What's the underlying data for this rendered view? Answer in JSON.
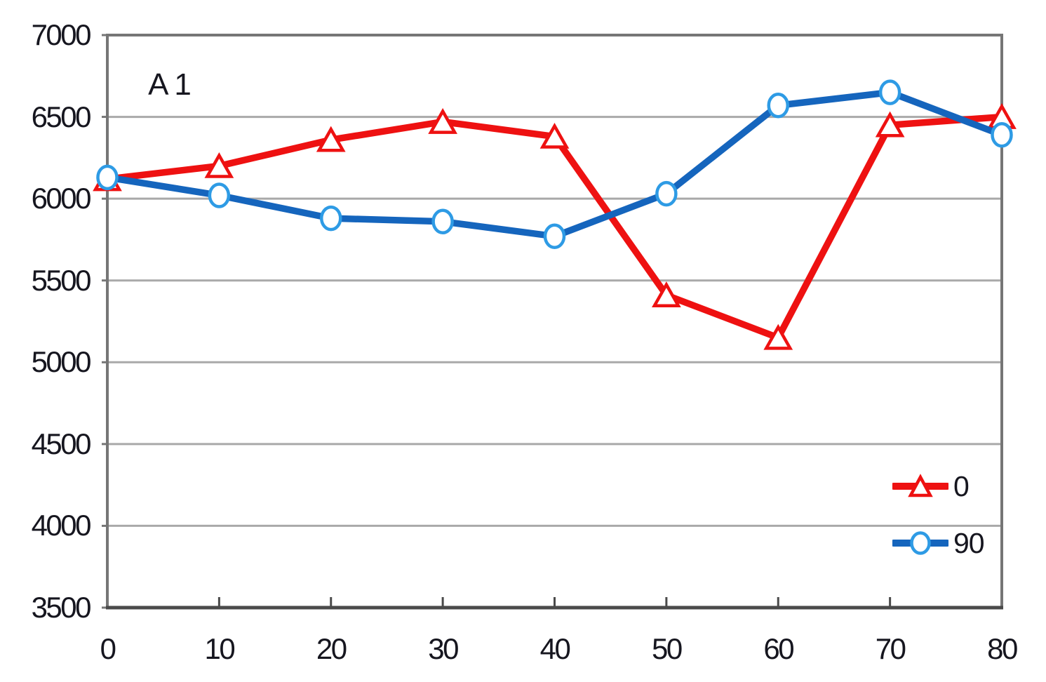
{
  "chart_data": {
    "type": "line",
    "title": "A1",
    "xlabel": "",
    "ylabel": "",
    "xlim": [
      0,
      80
    ],
    "ylim": [
      3500,
      7000
    ],
    "x": [
      0,
      10,
      20,
      30,
      40,
      50,
      60,
      70,
      80
    ],
    "xticks": [
      0,
      10,
      20,
      30,
      40,
      50,
      60,
      70,
      80
    ],
    "yticks": [
      3500,
      4000,
      4500,
      5000,
      5500,
      6000,
      6500,
      7000
    ],
    "grid": "horizontal-major",
    "legend_position": "inside-right-lower",
    "series": [
      {
        "name": "0",
        "marker": "triangle",
        "color": "#ee1111",
        "marker_stroke": "#ee1111",
        "marker_fill": "#ffffff",
        "values": [
          6120,
          6200,
          6360,
          6470,
          6380,
          5410,
          5150,
          6450,
          6500
        ]
      },
      {
        "name": "90",
        "marker": "circle",
        "color": "#1565bd",
        "marker_stroke": "#2e9be5",
        "marker_fill": "#ffffff",
        "values": [
          6130,
          6020,
          5880,
          5860,
          5770,
          6030,
          6570,
          6650,
          6390
        ]
      }
    ]
  },
  "colors": {
    "background": "#ffffff",
    "gridline": "#a9a9a9",
    "border": "#767676",
    "bottom_axis": "#4a4a4a",
    "text": "#16161f",
    "series_0": "#ee1111",
    "series_90": "#1565bd"
  }
}
